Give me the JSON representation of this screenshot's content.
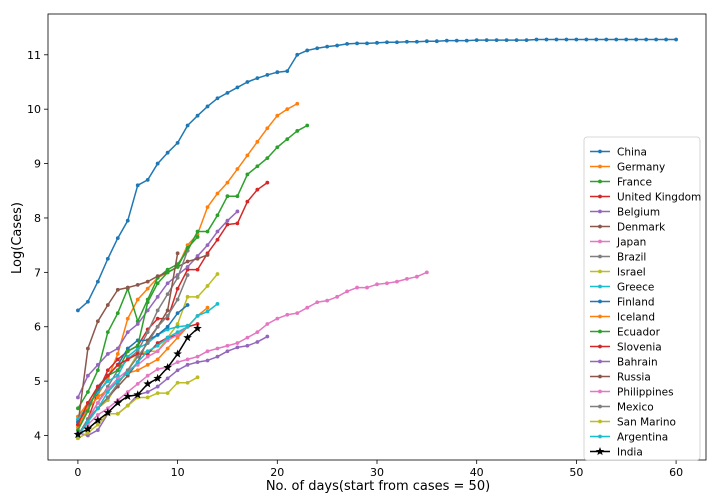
{
  "chart_data": {
    "type": "line",
    "title": "",
    "xlabel": "No. of days(start from cases = 50)",
    "ylabel": "Log(Cases)",
    "xlim": [
      -3,
      63
    ],
    "ylim": [
      3.55,
      11.75
    ],
    "xticks": [
      0,
      10,
      20,
      30,
      40,
      50,
      60
    ],
    "yticks": [
      4,
      5,
      6,
      7,
      8,
      9,
      10,
      11
    ],
    "grid": false,
    "legend": "center-right",
    "series": [
      {
        "name": "China",
        "color": "#1f77b4",
        "marker": "dot",
        "values": [
          6.3,
          6.46,
          6.83,
          7.25,
          7.63,
          7.95,
          8.6,
          8.7,
          9.0,
          9.2,
          9.38,
          9.7,
          9.88,
          10.05,
          10.2,
          10.3,
          10.4,
          10.5,
          10.57,
          10.63,
          10.68,
          10.7,
          11.0,
          11.08,
          11.12,
          11.15,
          11.17,
          11.2,
          11.21,
          11.21,
          11.22,
          11.23,
          11.23,
          11.24,
          11.24,
          11.25,
          11.25,
          11.26,
          11.26,
          11.26,
          11.27,
          11.27,
          11.27,
          11.27,
          11.27,
          11.27,
          11.28,
          11.28,
          11.28,
          11.28,
          11.28,
          11.28,
          11.28,
          11.28,
          11.28,
          11.28,
          11.28,
          11.28,
          11.28,
          11.28,
          11.28
        ]
      },
      {
        "name": "Germany",
        "color": "#ff7f0e",
        "marker": "dot",
        "values": [
          4.35,
          4.6,
          4.75,
          5.05,
          5.5,
          6.15,
          6.5,
          6.7,
          6.9,
          7.0,
          7.1,
          7.5,
          7.7,
          8.2,
          8.45,
          8.65,
          8.9,
          9.15,
          9.4,
          9.65,
          9.88,
          10.0,
          10.1
        ]
      },
      {
        "name": "France",
        "color": "#2ca02c",
        "marker": "dot",
        "values": [
          4.5,
          4.8,
          5.2,
          5.9,
          6.25,
          6.7,
          6.1,
          6.5,
          6.9,
          7.05,
          7.15,
          7.4,
          7.75,
          7.75,
          8.05,
          8.4,
          8.4,
          8.8,
          8.95,
          9.1,
          9.3,
          9.45,
          9.6,
          9.7
        ]
      },
      {
        "name": "United Kingdom",
        "color": "#d62728",
        "marker": "dot",
        "values": [
          4.0,
          4.3,
          4.8,
          5.2,
          5.4,
          5.55,
          5.65,
          5.95,
          6.15,
          6.15,
          6.7,
          7.05,
          7.05,
          7.35,
          7.6,
          7.88,
          7.9,
          8.3,
          8.52,
          8.65
        ]
      },
      {
        "name": "Belgium",
        "color": "#9467bd",
        "marker": "dot",
        "values": [
          4.7,
          5.1,
          5.3,
          5.5,
          5.6,
          5.9,
          6.05,
          6.3,
          6.55,
          6.8,
          6.95,
          7.1,
          7.3,
          7.5,
          7.75,
          7.95,
          8.12
        ]
      },
      {
        "name": "Denmark",
        "color": "#8c564b",
        "marker": "dot",
        "values": [
          4.2,
          5.6,
          6.1,
          6.4,
          6.68,
          6.72,
          6.77,
          6.83,
          6.93,
          7.0,
          7.1,
          7.2,
          7.25,
          7.32
        ]
      },
      {
        "name": "Japan",
        "color": "#e377c2",
        "marker": "dot",
        "values": [
          4.05,
          4.2,
          4.38,
          4.5,
          4.65,
          4.8,
          4.95,
          5.1,
          5.22,
          5.26,
          5.35,
          5.4,
          5.45,
          5.55,
          5.6,
          5.65,
          5.7,
          5.8,
          5.9,
          6.05,
          6.15,
          6.22,
          6.25,
          6.35,
          6.45,
          6.48,
          6.55,
          6.65,
          6.72,
          6.72,
          6.78,
          6.8,
          6.83,
          6.88,
          6.92,
          7.0
        ]
      },
      {
        "name": "Brazil",
        "color": "#7f7f7f",
        "marker": "dot",
        "values": [
          3.95,
          4.3,
          4.6,
          4.9,
          5.2,
          5.4,
          5.55,
          5.9,
          6.3,
          6.6,
          6.9,
          7.4
        ]
      },
      {
        "name": "Israel",
        "color": "#bcbd22",
        "marker": "dot",
        "values": [
          4.0,
          4.3,
          4.5,
          4.65,
          4.95,
          5.2,
          5.5,
          5.55,
          5.55,
          5.8,
          6.05,
          6.55,
          6.55,
          6.75,
          6.97
        ]
      },
      {
        "name": "Greece",
        "color": "#17becf",
        "marker": "dot",
        "values": [
          4.3,
          4.55,
          4.8,
          5.0,
          5.1,
          5.45,
          5.6,
          5.7,
          5.85,
          5.95,
          6.0,
          6.02
        ]
      },
      {
        "name": "Finland",
        "color": "#1f77b4",
        "marker": "dot",
        "values": [
          4.25,
          4.5,
          4.85,
          5.1,
          5.3,
          5.6,
          5.75,
          5.75,
          5.85,
          6.0,
          6.25,
          6.4
        ]
      },
      {
        "name": "Iceland",
        "color": "#ff7f0e",
        "marker": "dot",
        "values": [
          4.15,
          4.5,
          4.7,
          4.85,
          5.0,
          5.15,
          5.2,
          5.3,
          5.4,
          5.6,
          5.8,
          6.0,
          6.2,
          6.35
        ]
      },
      {
        "name": "Ecuador",
        "color": "#2ca02c",
        "marker": "dot",
        "values": [
          4.1,
          4.45,
          4.9,
          5.1,
          5.2,
          5.55,
          5.65,
          6.45,
          6.8,
          7.0,
          7.1,
          7.45,
          7.65
        ]
      },
      {
        "name": "Slovenia",
        "color": "#d62728",
        "marker": "dot",
        "values": [
          4.2,
          4.6,
          4.9,
          5.1,
          5.3,
          5.4,
          5.5,
          5.5,
          5.7,
          5.8,
          5.85,
          6.0,
          6.05
        ]
      },
      {
        "name": "Bahrain",
        "color": "#9467bd",
        "marker": "dot",
        "values": [
          4.05,
          4.0,
          4.1,
          4.4,
          4.4,
          4.55,
          4.75,
          4.8,
          4.9,
          5.05,
          5.2,
          5.3,
          5.35,
          5.38,
          5.45,
          5.55,
          5.62,
          5.65,
          5.72,
          5.82
        ]
      },
      {
        "name": "Russia",
        "color": "#8c564b",
        "marker": "dot",
        "values": [
          4.0,
          4.3,
          4.5,
          4.7,
          4.9,
          5.1,
          5.35,
          5.75,
          6.0,
          6.3,
          7.35
        ]
      },
      {
        "name": "Philippines",
        "color": "#e377c2",
        "marker": "dot",
        "values": [
          4.0,
          4.3,
          4.6,
          4.85,
          5.05,
          5.2,
          5.3,
          5.45,
          5.55,
          5.75,
          5.85,
          6.0
        ]
      },
      {
        "name": "Mexico",
        "color": "#7f7f7f",
        "marker": "dot",
        "values": [
          4.0,
          4.3,
          4.5,
          4.7,
          4.95,
          5.2,
          5.45,
          5.7,
          6.0,
          6.2,
          6.5,
          6.95
        ]
      },
      {
        "name": "San Marino",
        "color": "#bcbd22",
        "marker": "dot",
        "values": [
          3.95,
          4.05,
          4.2,
          4.4,
          4.4,
          4.55,
          4.7,
          4.7,
          4.78,
          4.78,
          4.97,
          4.97,
          5.07
        ]
      },
      {
        "name": "Argentina",
        "color": "#17becf",
        "marker": "dot",
        "values": [
          4.0,
          4.25,
          4.5,
          4.8,
          5.0,
          5.15,
          5.35,
          5.55,
          5.65,
          5.8,
          5.9,
          6.0,
          6.2,
          6.28,
          6.42
        ]
      },
      {
        "name": "India",
        "color": "#000000",
        "marker": "star",
        "values": [
          4.02,
          4.12,
          4.28,
          4.42,
          4.6,
          4.72,
          4.75,
          4.95,
          5.05,
          5.25,
          5.5,
          5.8,
          5.97
        ]
      }
    ]
  }
}
